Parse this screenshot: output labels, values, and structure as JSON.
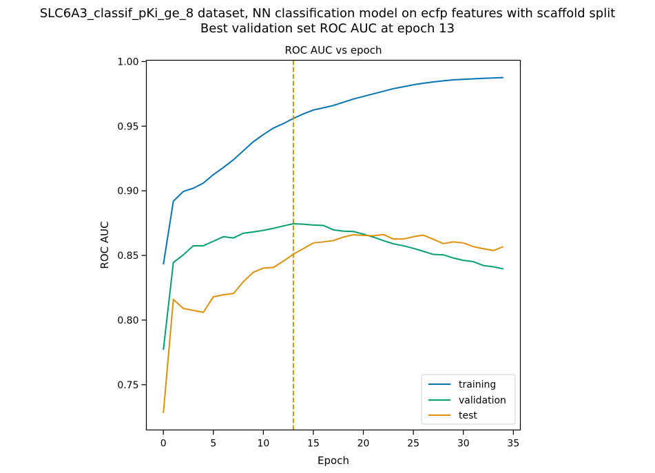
{
  "figure": {
    "suptitle_line1": "SLC6A3_classif_pKi_ge_8 dataset, NN classification model on ecfp features with scaffold split",
    "suptitle_line2": "Best validation set ROC AUC at epoch 13"
  },
  "chart_data": {
    "type": "line",
    "title": "ROC AUC vs epoch",
    "xlabel": "Epoch",
    "ylabel": "ROC AUC",
    "xlim": [
      -1.7,
      35.7
    ],
    "ylim": [
      0.715,
      1.001
    ],
    "xticks": [
      0,
      5,
      10,
      15,
      20,
      25,
      30,
      35
    ],
    "yticks": [
      0.75,
      0.8,
      0.85,
      0.9,
      0.95,
      1.0
    ],
    "xtick_labels": [
      "0",
      "5",
      "10",
      "15",
      "20",
      "25",
      "30",
      "35"
    ],
    "ytick_labels": [
      "0.75",
      "0.80",
      "0.85",
      "0.90",
      "0.95",
      "1.00"
    ],
    "grid": false,
    "legend_position": "lower-right",
    "best_epoch": 13,
    "best_epoch_color": "#de8f05",
    "x": [
      0,
      1,
      2,
      3,
      4,
      5,
      6,
      7,
      8,
      9,
      10,
      11,
      12,
      13,
      14,
      15,
      16,
      17,
      18,
      19,
      20,
      21,
      22,
      23,
      24,
      25,
      26,
      27,
      28,
      29,
      30,
      31,
      32,
      33,
      34
    ],
    "series": [
      {
        "name": "training",
        "color": "#0173b2",
        "values": [
          0.843,
          0.892,
          0.8995,
          0.902,
          0.906,
          0.9125,
          0.918,
          0.924,
          0.931,
          0.938,
          0.9435,
          0.9485,
          0.952,
          0.956,
          0.9595,
          0.9625,
          0.9642,
          0.966,
          0.9685,
          0.971,
          0.973,
          0.975,
          0.977,
          0.979,
          0.9805,
          0.982,
          0.9832,
          0.9842,
          0.9851,
          0.9858,
          0.9862,
          0.9866,
          0.987,
          0.9873,
          0.9876
        ]
      },
      {
        "name": "validation",
        "color": "#029e73",
        "values": [
          0.777,
          0.8445,
          0.8505,
          0.8575,
          0.8575,
          0.861,
          0.8645,
          0.8635,
          0.8672,
          0.8682,
          0.8694,
          0.871,
          0.8728,
          0.8745,
          0.8742,
          0.8735,
          0.8732,
          0.8698,
          0.8688,
          0.8685,
          0.8665,
          0.8642,
          0.8615,
          0.859,
          0.8575,
          0.8555,
          0.8532,
          0.8508,
          0.8505,
          0.848,
          0.8462,
          0.8452,
          0.8422,
          0.8412,
          0.8396
        ]
      },
      {
        "name": "test",
        "color": "#de8f05",
        "values": [
          0.728,
          0.816,
          0.809,
          0.8075,
          0.806,
          0.818,
          0.8196,
          0.8205,
          0.8297,
          0.837,
          0.8402,
          0.8407,
          0.8456,
          0.851,
          0.8553,
          0.8597,
          0.8605,
          0.8615,
          0.8642,
          0.866,
          0.8655,
          0.8652,
          0.8662,
          0.8627,
          0.8627,
          0.8645,
          0.8657,
          0.8625,
          0.8592,
          0.8605,
          0.8597,
          0.8568,
          0.8552,
          0.8538,
          0.8568
        ]
      }
    ]
  }
}
